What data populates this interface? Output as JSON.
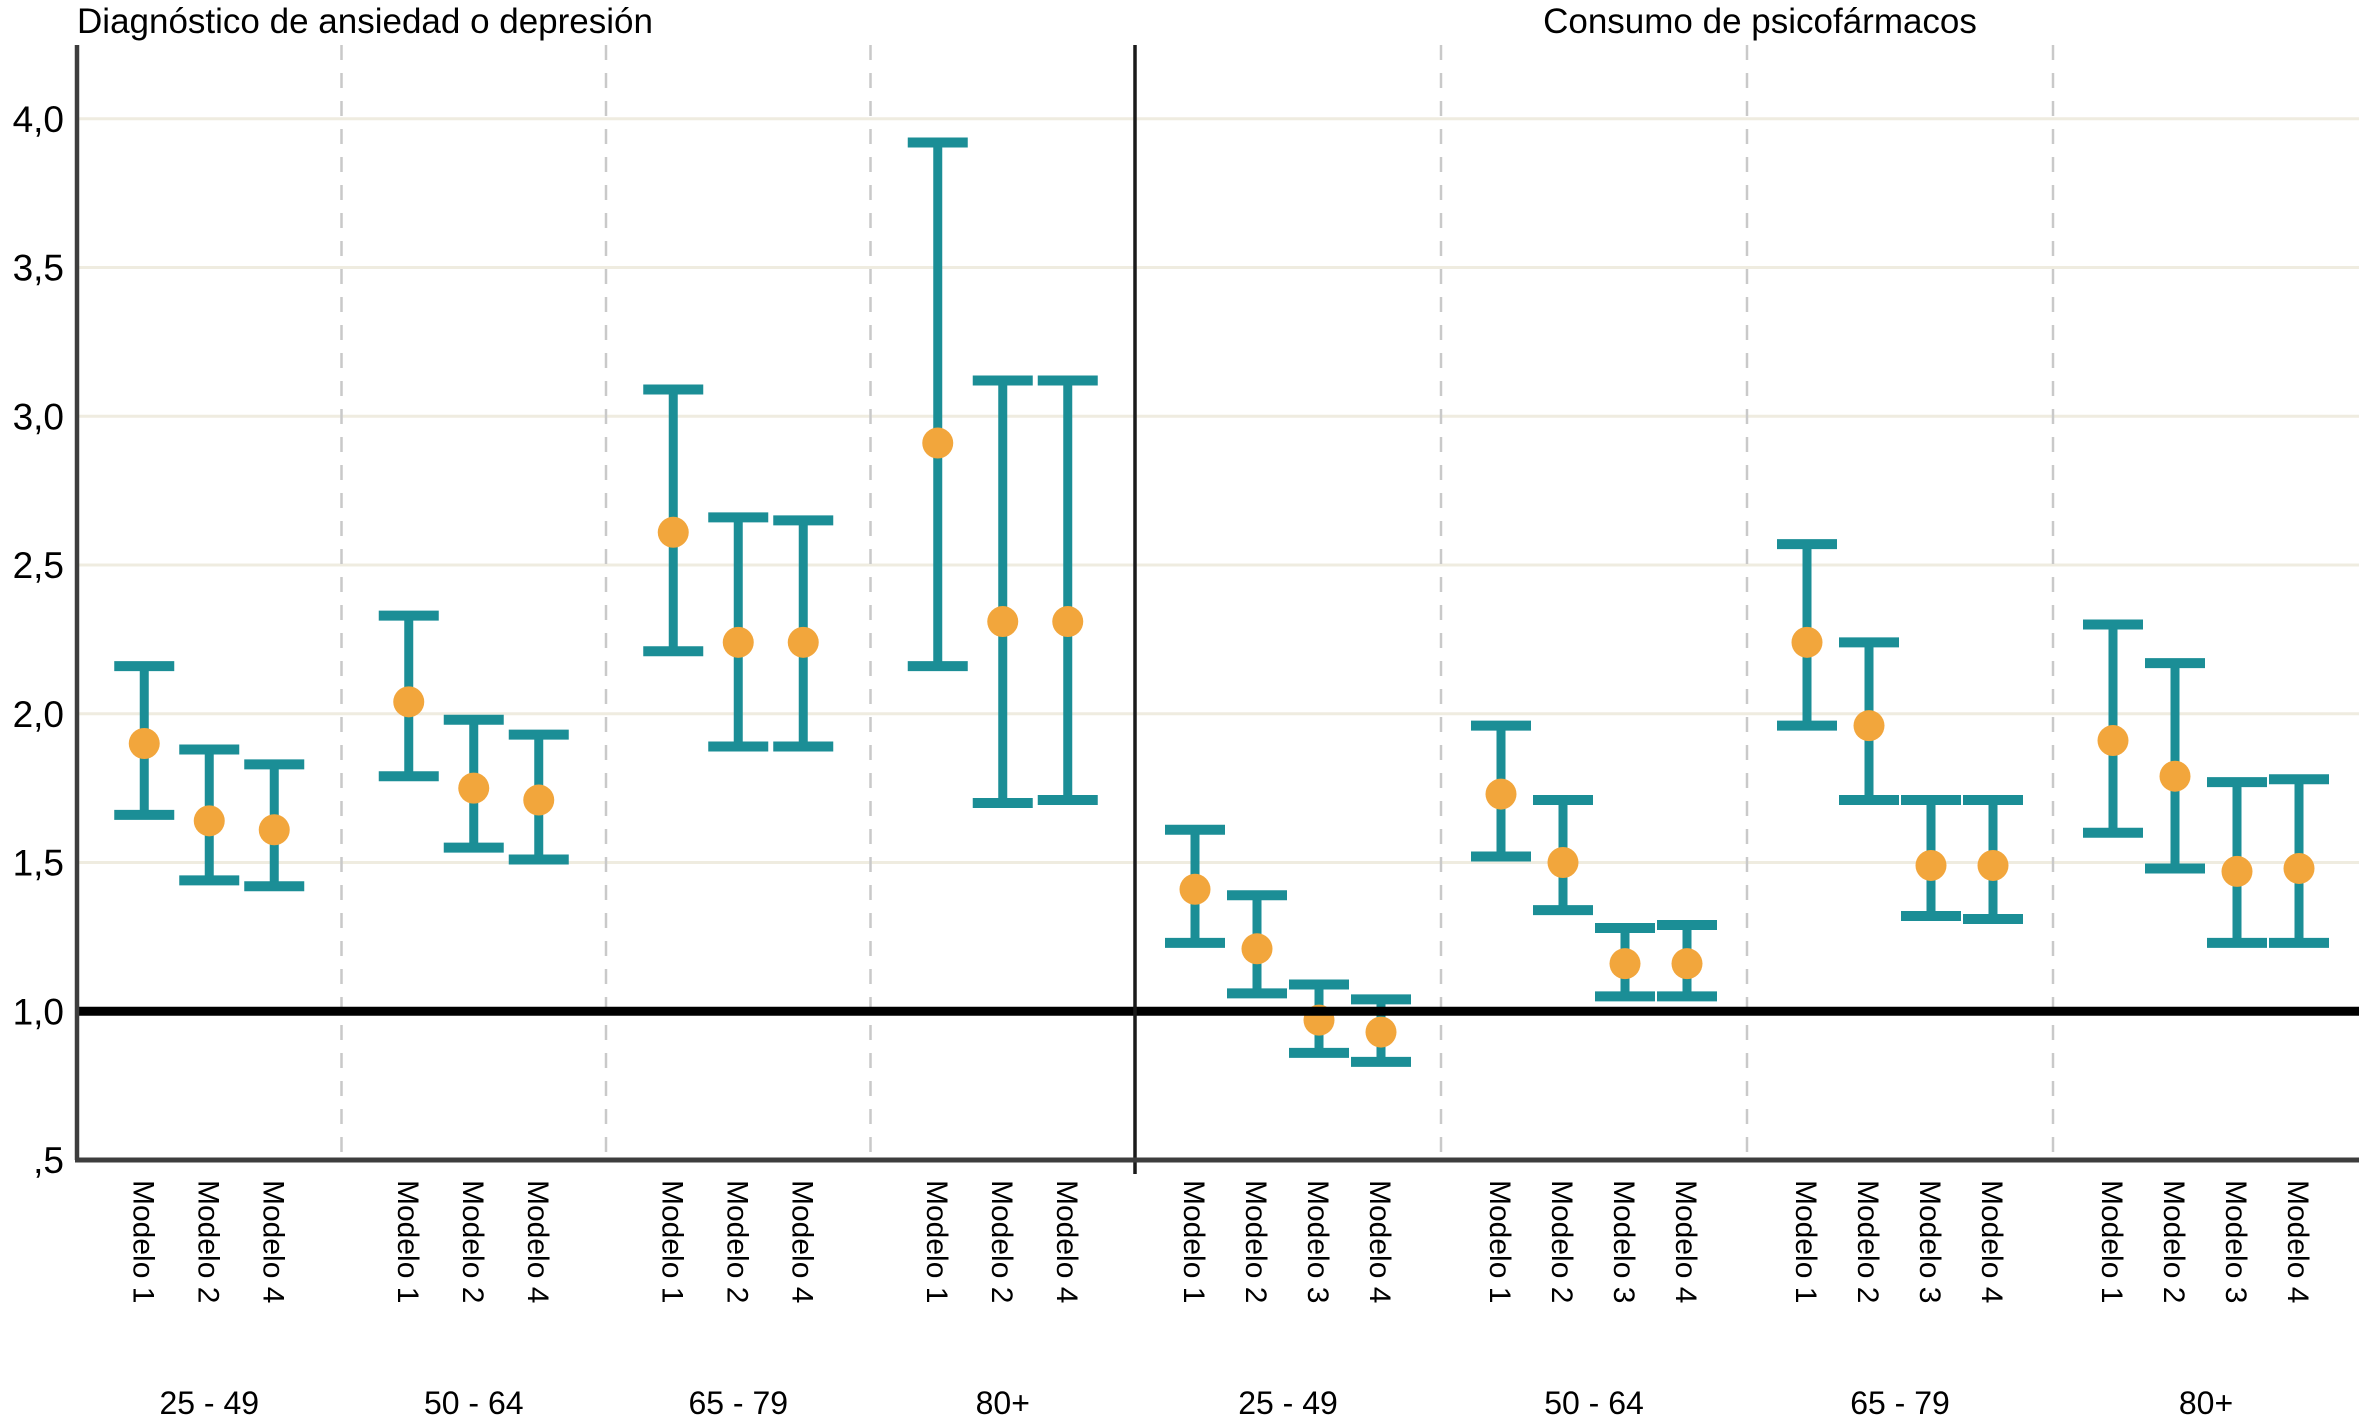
{
  "chart_data": {
    "type": "errorbar",
    "title": "",
    "y_axis": {
      "reference_line": 1.0,
      "range": [
        0.5,
        4.25
      ],
      "ticks": [
        {
          "label": "4,0",
          "value": 4.0
        },
        {
          "label": "3,5",
          "value": 3.5
        },
        {
          "label": "3,0",
          "value": 3.0
        },
        {
          "label": "2,5",
          "value": 2.5
        },
        {
          "label": "2,0",
          "value": 2.0
        },
        {
          "label": "1,5",
          "value": 1.5
        },
        {
          "label": "1,0",
          "value": 1.0
        },
        {
          "label": ",5",
          "value": 0.5
        }
      ]
    },
    "colors": {
      "bar": "#1b8e96",
      "point": "#f2a63c",
      "grid": "#efece0",
      "separator": "#c9c9c9",
      "axis": "#3d3d3d",
      "reference": "#000000",
      "divider": "#1a1a1a",
      "text": "#000000"
    },
    "legend": "none",
    "grid": "horizontal",
    "panels": [
      {
        "title": "Diagnóstico de ansiedad o depresión",
        "groups": [
          {
            "label": "25 - 49",
            "models": [
              {
                "label": "Modelo 1",
                "value": 1.9,
                "lo": 1.66,
                "hi": 2.16
              },
              {
                "label": "Modelo 2",
                "value": 1.64,
                "lo": 1.44,
                "hi": 1.88
              },
              {
                "label": "Modelo 4",
                "value": 1.61,
                "lo": 1.42,
                "hi": 1.83
              }
            ]
          },
          {
            "label": "50 - 64",
            "models": [
              {
                "label": "Modelo 1",
                "value": 2.04,
                "lo": 1.79,
                "hi": 2.33
              },
              {
                "label": "Modelo 2",
                "value": 1.75,
                "lo": 1.55,
                "hi": 1.98
              },
              {
                "label": "Modelo 4",
                "value": 1.71,
                "lo": 1.51,
                "hi": 1.93
              }
            ]
          },
          {
            "label": "65 - 79",
            "models": [
              {
                "label": "Modelo 1",
                "value": 2.61,
                "lo": 2.21,
                "hi": 3.09
              },
              {
                "label": "Modelo 2",
                "value": 2.24,
                "lo": 1.89,
                "hi": 2.66
              },
              {
                "label": "Modelo 4",
                "value": 2.24,
                "lo": 1.89,
                "hi": 2.65
              }
            ]
          },
          {
            "label": "80+",
            "models": [
              {
                "label": "Modelo 1",
                "value": 2.91,
                "lo": 2.16,
                "hi": 3.92
              },
              {
                "label": "Modelo 2",
                "value": 2.31,
                "lo": 1.7,
                "hi": 3.12
              },
              {
                "label": "Modelo 4",
                "value": 2.31,
                "lo": 1.71,
                "hi": 3.12
              }
            ]
          }
        ]
      },
      {
        "title": "Consumo de psicofármacos",
        "groups": [
          {
            "label": "25 - 49",
            "models": [
              {
                "label": "Modelo 1",
                "value": 1.41,
                "lo": 1.23,
                "hi": 1.61
              },
              {
                "label": "Modelo 2",
                "value": 1.21,
                "lo": 1.06,
                "hi": 1.39
              },
              {
                "label": "Modelo 3",
                "value": 0.97,
                "lo": 0.86,
                "hi": 1.09
              },
              {
                "label": "Modelo 4",
                "value": 0.93,
                "lo": 0.83,
                "hi": 1.04
              }
            ]
          },
          {
            "label": "50 - 64",
            "models": [
              {
                "label": "Modelo 1",
                "value": 1.73,
                "lo": 1.52,
                "hi": 1.96
              },
              {
                "label": "Modelo 2",
                "value": 1.5,
                "lo": 1.34,
                "hi": 1.71
              },
              {
                "label": "Modelo 3",
                "value": 1.16,
                "lo": 1.05,
                "hi": 1.28
              },
              {
                "label": "Modelo 4",
                "value": 1.16,
                "lo": 1.05,
                "hi": 1.29
              }
            ]
          },
          {
            "label": "65 - 79",
            "models": [
              {
                "label": "Modelo 1",
                "value": 2.24,
                "lo": 1.96,
                "hi": 2.57
              },
              {
                "label": "Modelo 2",
                "value": 1.96,
                "lo": 1.71,
                "hi": 2.24
              },
              {
                "label": "Modelo 3",
                "value": 1.49,
                "lo": 1.32,
                "hi": 1.71
              },
              {
                "label": "Modelo 4",
                "value": 1.49,
                "lo": 1.31,
                "hi": 1.71
              }
            ]
          },
          {
            "label": "80+",
            "models": [
              {
                "label": "Modelo 1",
                "value": 1.91,
                "lo": 1.6,
                "hi": 2.3
              },
              {
                "label": "Modelo 2",
                "value": 1.79,
                "lo": 1.48,
                "hi": 2.17
              },
              {
                "label": "Modelo 3",
                "value": 1.47,
                "lo": 1.23,
                "hi": 1.77
              },
              {
                "label": "Modelo 4",
                "value": 1.48,
                "lo": 1.23,
                "hi": 1.78
              }
            ]
          }
        ]
      }
    ]
  }
}
